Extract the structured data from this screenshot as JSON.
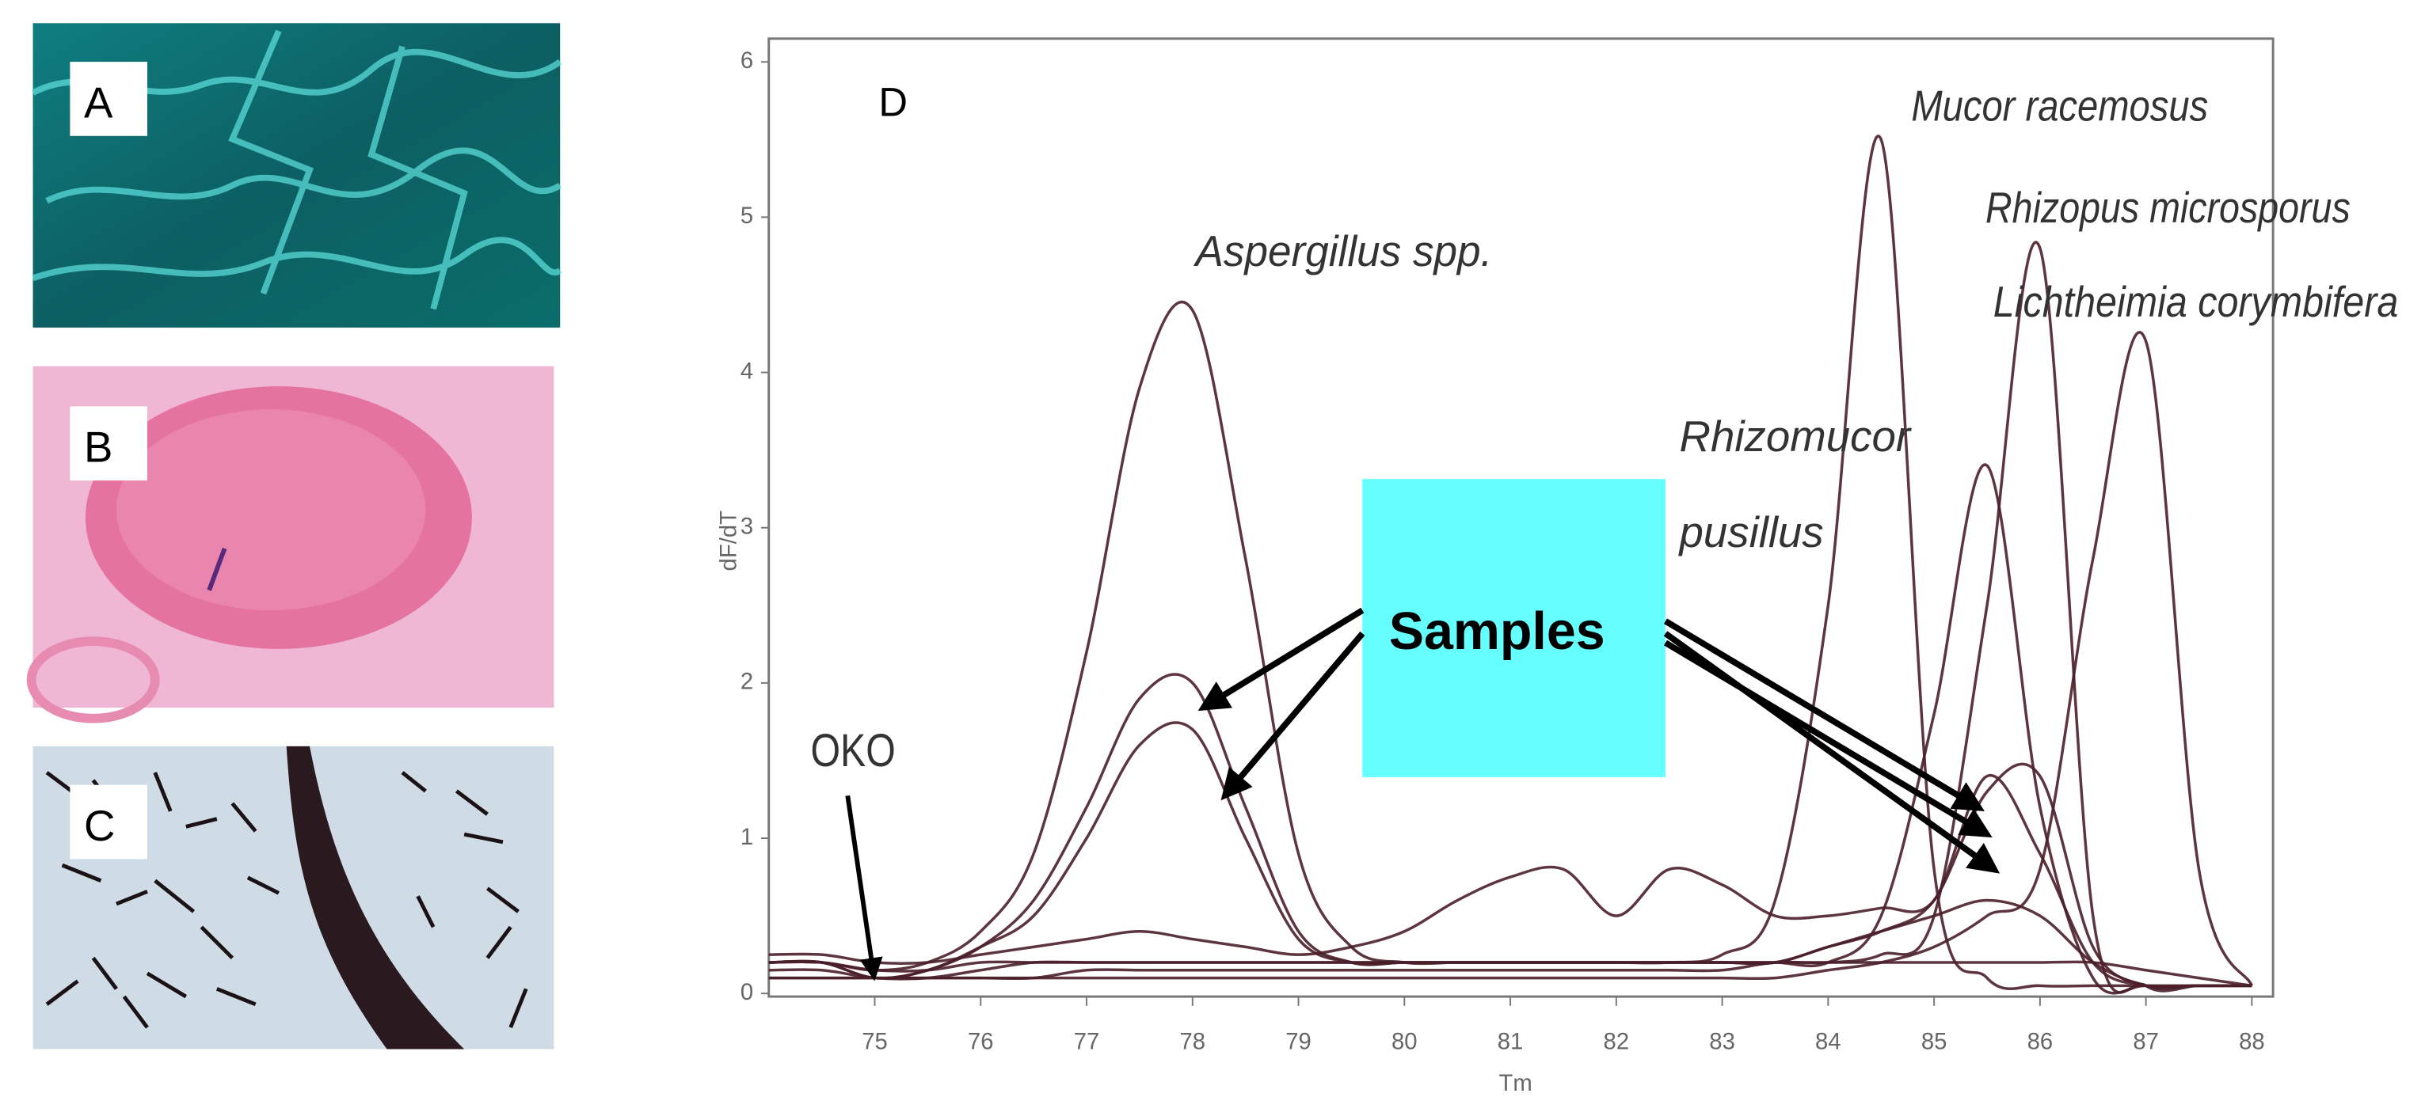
{
  "panels": [
    "A",
    "B",
    "C"
  ],
  "chart_data": {
    "type": "line",
    "panel_label": "D",
    "x_label": "Tm",
    "y_label": "dF/dT",
    "x": [
      74,
      74.5,
      75,
      75.5,
      76,
      76.5,
      77,
      77.5,
      78,
      78.5,
      79,
      79.5,
      80,
      80.5,
      81,
      81.5,
      82,
      82.5,
      83,
      83.5,
      84,
      84.5,
      85,
      85.5,
      86,
      86.5,
      87,
      87.5,
      88
    ],
    "xlim": [
      74,
      88.2
    ],
    "ylim": [
      0,
      6.15
    ],
    "xticks": [
      75,
      76,
      77,
      78,
      79,
      80,
      81,
      82,
      83,
      84,
      85,
      86,
      87,
      88
    ],
    "yticks": [
      0,
      1,
      2,
      3,
      4,
      5,
      6
    ],
    "color": "#4a1f2a",
    "series": [
      {
        "name": "Aspergillus spp.",
        "values": [
          0.2,
          0.2,
          0.15,
          0.2,
          0.4,
          0.9,
          2.2,
          3.9,
          4.4,
          2.8,
          0.9,
          0.3,
          0.2,
          0.2,
          0.2,
          0.2,
          0.2,
          0.2,
          0.2,
          0.2,
          0.2,
          0.2,
          0.2,
          0.2,
          0.2,
          0.2,
          0.15,
          0.1,
          0.05
        ]
      },
      {
        "name": "Mucor racemosus",
        "values": [
          0.15,
          0.15,
          0.1,
          0.1,
          0.15,
          0.2,
          0.2,
          0.2,
          0.2,
          0.2,
          0.2,
          0.2,
          0.2,
          0.2,
          0.2,
          0.2,
          0.2,
          0.2,
          0.25,
          0.6,
          2.5,
          5.5,
          0.8,
          0.1,
          0.05,
          0.05,
          0.05,
          0.05,
          0.05
        ]
      },
      {
        "name": "Rhizopus microsporus",
        "values": [
          0.1,
          0.1,
          0.1,
          0.1,
          0.1,
          0.1,
          0.15,
          0.15,
          0.15,
          0.15,
          0.15,
          0.15,
          0.15,
          0.15,
          0.15,
          0.15,
          0.15,
          0.15,
          0.15,
          0.2,
          0.2,
          0.25,
          0.5,
          2.5,
          4.8,
          0.5,
          0.05,
          0.05,
          0.05
        ]
      },
      {
        "name": "Lichtheimia corymbifera",
        "values": [
          0.1,
          0.1,
          0.1,
          0.1,
          0.1,
          0.1,
          0.1,
          0.1,
          0.1,
          0.1,
          0.1,
          0.1,
          0.1,
          0.1,
          0.1,
          0.1,
          0.1,
          0.1,
          0.1,
          0.1,
          0.15,
          0.2,
          0.3,
          0.5,
          0.8,
          2.8,
          4.2,
          0.8,
          0.05
        ]
      },
      {
        "name": "Rhizomucor pusillus",
        "values": [
          0.2,
          0.2,
          0.15,
          0.15,
          0.2,
          0.2,
          0.2,
          0.2,
          0.2,
          0.2,
          0.2,
          0.2,
          0.2,
          0.2,
          0.2,
          0.2,
          0.2,
          0.2,
          0.2,
          0.2,
          0.2,
          0.5,
          1.8,
          3.4,
          1.2,
          0.1,
          0.05,
          0.05,
          0.05
        ]
      },
      {
        "values": [
          0.2,
          0.2,
          0.1,
          0.15,
          0.3,
          0.6,
          1.2,
          1.9,
          2.0,
          1.2,
          0.4,
          0.2,
          0.2,
          0.2,
          0.2,
          0.2,
          0.2,
          0.2,
          0.2,
          0.2,
          0.3,
          0.4,
          0.6,
          1.3,
          1.4,
          0.3,
          0.05,
          0.05,
          0.05
        ]
      },
      {
        "values": [
          0.2,
          0.2,
          0.1,
          0.15,
          0.3,
          0.5,
          1.0,
          1.6,
          1.7,
          1.0,
          0.35,
          0.2,
          0.2,
          0.2,
          0.2,
          0.2,
          0.2,
          0.2,
          0.2,
          0.2,
          0.3,
          0.4,
          0.5,
          0.6,
          0.5,
          0.2,
          0.05,
          0.05,
          0.05
        ]
      },
      {
        "values": [
          0.25,
          0.25,
          0.2,
          0.2,
          0.25,
          0.3,
          0.35,
          0.4,
          0.35,
          0.3,
          0.25,
          0.3,
          0.4,
          0.6,
          0.75,
          0.8,
          0.5,
          0.8,
          0.7,
          0.5,
          0.5,
          0.55,
          0.6,
          1.4,
          0.9,
          0.2,
          0.05,
          0.05,
          0.05
        ]
      }
    ],
    "annotations": [
      "Samples",
      "OKO"
    ]
  }
}
